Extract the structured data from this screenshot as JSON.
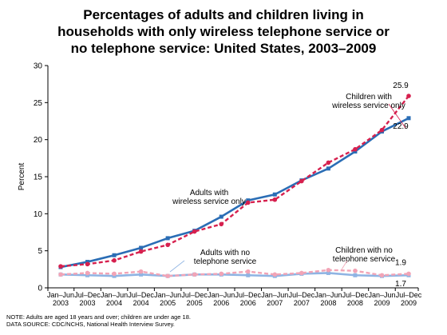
{
  "title_lines": [
    "Percentages of adults and children living in",
    "households with only wireless telephone service or",
    "no telephone service: United States, 2003–2009"
  ],
  "notes": [
    "NOTE: Adults are aged 18 years and over; children are under age 18.",
    "DATA SOURCE: CDC/NCHS, National Health Interview Survey."
  ],
  "chart_data": {
    "type": "line",
    "title": "Percentages of adults and children living in households with only wireless telephone service or no telephone service: United States, 2003–2009",
    "ylabel": "Percent",
    "xlabel": "",
    "ylim": [
      0,
      30
    ],
    "yticks": [
      0,
      5,
      10,
      15,
      20,
      25,
      30
    ],
    "grid": false,
    "categories": [
      {
        "line1": "Jan–Jun",
        "line2": "2003"
      },
      {
        "line1": "Jul–Dec",
        "line2": "2003"
      },
      {
        "line1": "Jan–Jun",
        "line2": "2004"
      },
      {
        "line1": "Jul–Dec",
        "line2": "2004"
      },
      {
        "line1": "Jan–Jun",
        "line2": "2005"
      },
      {
        "line1": "Jul–Dec",
        "line2": "2005"
      },
      {
        "line1": "Jan–Jun",
        "line2": "2006"
      },
      {
        "line1": "Jul–Dec",
        "line2": "2006"
      },
      {
        "line1": "Jan–Jun",
        "line2": "2007"
      },
      {
        "line1": "Jul–Dec",
        "line2": "2007"
      },
      {
        "line1": "Jan–Jun",
        "line2": "2008"
      },
      {
        "line1": "Jul–Dec",
        "line2": "2008"
      },
      {
        "line1": "Jan–Jun",
        "line2": "2009"
      },
      {
        "line1": "Jul–Dec",
        "line2": "2009"
      }
    ],
    "series": [
      {
        "key": "adults-wireless",
        "label_lines": [
          "Adults with",
          "wireless service only"
        ],
        "values": [
          2.8,
          3.5,
          4.4,
          5.4,
          6.7,
          7.7,
          9.6,
          11.8,
          12.6,
          14.5,
          16.1,
          18.4,
          21.1,
          22.9
        ],
        "color": "#2a6db5",
        "dashed": false,
        "marker": "square",
        "end_label": "22.9"
      },
      {
        "key": "children-wireless",
        "label_lines": [
          "Children with",
          "wireless service only"
        ],
        "values": [
          2.9,
          3.2,
          3.7,
          4.9,
          5.8,
          7.6,
          8.6,
          11.5,
          11.9,
          14.4,
          16.9,
          18.7,
          21.3,
          25.9
        ],
        "color": "#d6204e",
        "dashed": true,
        "marker": "circle",
        "end_label": "25.9"
      },
      {
        "key": "adults-no-phone",
        "label_lines": [
          "Adults with no",
          "telephone service"
        ],
        "values": [
          1.8,
          1.7,
          1.6,
          1.8,
          1.6,
          1.8,
          1.8,
          1.7,
          1.6,
          1.9,
          2.0,
          1.7,
          1.6,
          1.7
        ],
        "color": "#8fb4e3",
        "dashed": false,
        "marker": "square",
        "end_label": "1.7"
      },
      {
        "key": "children-no-phone",
        "label_lines": [
          "Children with no",
          "telephone service"
        ],
        "values": [
          1.8,
          2.0,
          1.9,
          2.2,
          1.6,
          1.8,
          1.9,
          2.2,
          1.8,
          2.0,
          2.4,
          2.3,
          1.7,
          1.9
        ],
        "color": "#f2a4b6",
        "dashed": true,
        "marker": "circle",
        "end_label": "1.9"
      }
    ]
  }
}
